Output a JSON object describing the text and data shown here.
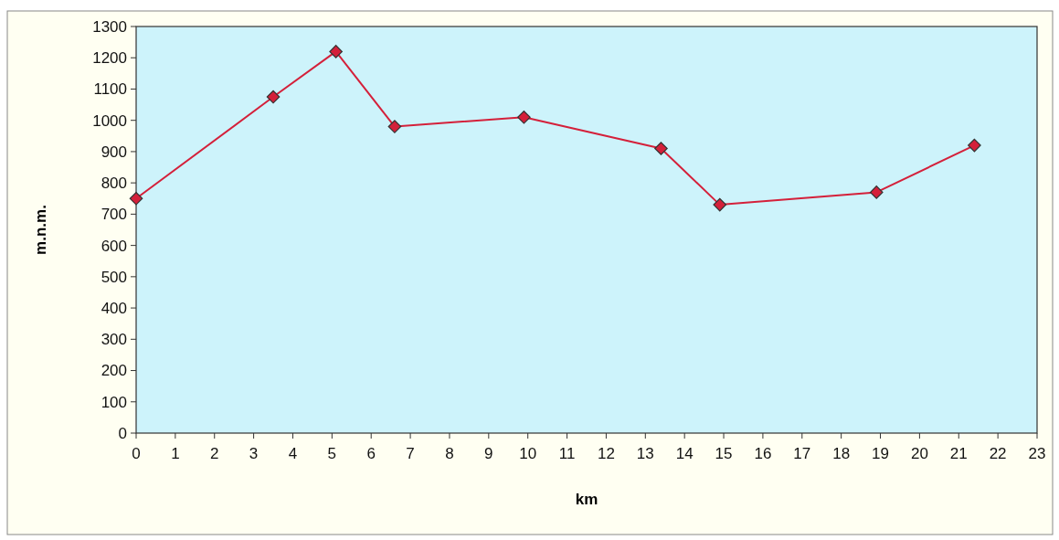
{
  "chart_data": {
    "type": "line",
    "xlabel": "km",
    "ylabel": "m.n.m.",
    "x": [
      0,
      3.5,
      5.1,
      6.6,
      9.9,
      13.4,
      14.9,
      18.9,
      21.4
    ],
    "series": [
      {
        "color": "#d4203a",
        "values": [
          750,
          1075,
          1220,
          980,
          1010,
          910,
          730,
          770,
          920
        ]
      }
    ],
    "xlim": [
      0,
      23
    ],
    "xticks": [
      0,
      1,
      2,
      3,
      4,
      5,
      6,
      7,
      8,
      9,
      10,
      11,
      12,
      13,
      14,
      15,
      16,
      17,
      18,
      19,
      20,
      21,
      22,
      23
    ],
    "ylim": [
      0,
      1300
    ],
    "yticks": [
      0,
      100,
      200,
      300,
      400,
      500,
      600,
      700,
      800,
      900,
      1000,
      1100,
      1200,
      1300
    ],
    "marker": "diamond",
    "line_style": "solid",
    "grid": false
  }
}
